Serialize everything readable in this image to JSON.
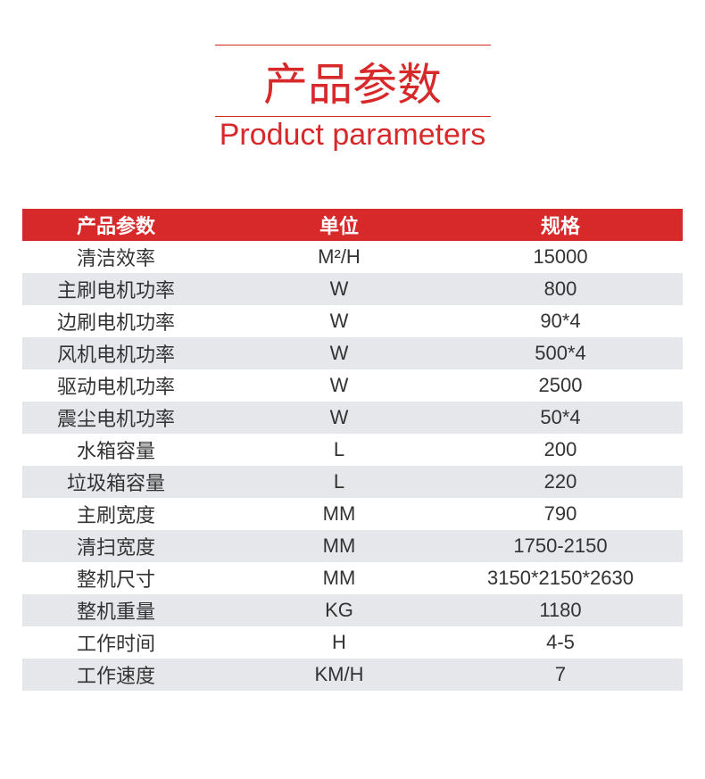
{
  "title_cn": "产品参数",
  "title_en": "Product parameters",
  "accent": "#d7282a",
  "table": {
    "headers": [
      "产品参数",
      "单位",
      "规格"
    ],
    "rows": [
      [
        "清洁效率",
        "M²/H",
        "15000"
      ],
      [
        "主刷电机功率",
        "W",
        "800"
      ],
      [
        "边刷电机功率",
        "W",
        "90*4"
      ],
      [
        "风机电机功率",
        "W",
        "500*4"
      ],
      [
        "驱动电机功率",
        "W",
        "2500"
      ],
      [
        "震尘电机功率",
        "W",
        "50*4"
      ],
      [
        "水箱容量",
        "L",
        "200"
      ],
      [
        "垃圾箱容量",
        "L",
        "220"
      ],
      [
        "主刷宽度",
        "MM",
        "790"
      ],
      [
        "清扫宽度",
        "MM",
        "1750-2150"
      ],
      [
        "整机尺寸",
        "MM",
        "3150*2150*2630"
      ],
      [
        "整机重量",
        "KG",
        "1180"
      ],
      [
        "工作时间",
        "H",
        "4-5"
      ],
      [
        "工作速度",
        "KM/H",
        "7"
      ]
    ]
  }
}
